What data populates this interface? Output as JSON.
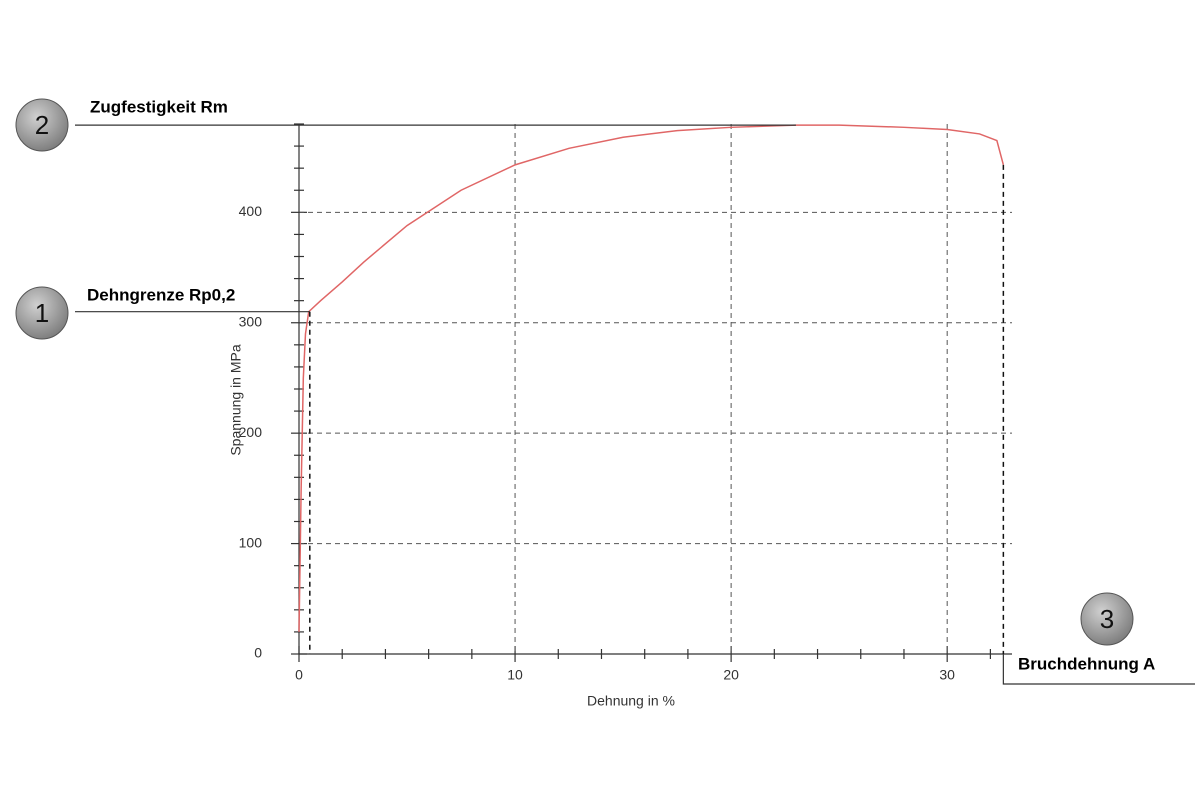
{
  "chart_data": {
    "type": "line",
    "x_label": "Dehnung in %",
    "y_label": "Spannung in MPa",
    "x": [
      0,
      0.1,
      0.2,
      0.3,
      0.45,
      1,
      2,
      3,
      5,
      7.5,
      10,
      12.5,
      15,
      17.5,
      20,
      23,
      25,
      28,
      30,
      31.5,
      32.3,
      32.6
    ],
    "series": [
      {
        "color": "#e06666",
        "values": [
          20,
          150,
          250,
          290,
          310,
          320,
          337,
          355,
          388,
          420,
          443,
          458,
          468,
          474,
          477,
          479,
          479,
          477,
          475,
          471,
          465,
          443
        ]
      }
    ],
    "xlim": [
      0,
      33
    ],
    "ylim": [
      0,
      480
    ],
    "xticks": [
      0,
      10,
      20,
      30
    ],
    "yticks": [
      0,
      100,
      200,
      300,
      400
    ],
    "xminorticks": [
      2,
      4,
      6,
      8,
      12,
      14,
      16,
      18,
      22,
      24,
      26,
      28,
      32
    ],
    "yminorticks": [
      20,
      40,
      60,
      80,
      120,
      140,
      160,
      180,
      220,
      240,
      260,
      280,
      320,
      340,
      360,
      380,
      420,
      440,
      460,
      480
    ],
    "grid": true,
    "annotations": [
      {
        "marker": "1",
        "label": "Dehngrenze Rp0,2",
        "x": 0.5,
        "y": 310
      },
      {
        "marker": "2",
        "label": "Zugfestigkeit Rm",
        "x": 23,
        "y": 479
      },
      {
        "marker": "3",
        "label": "Bruchdehnung A",
        "x": 32.6,
        "y": 443
      }
    ]
  }
}
